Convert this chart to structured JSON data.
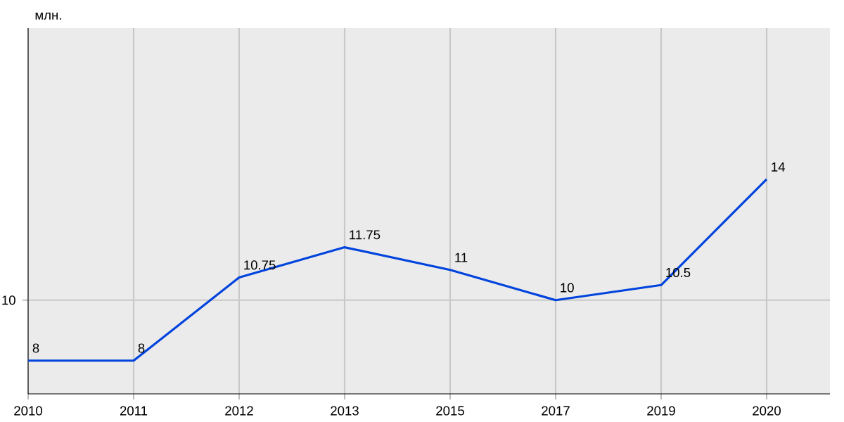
{
  "chart_data": {
    "type": "line",
    "ylabel": "млн.",
    "categories": [
      "2010",
      "2011",
      "2012",
      "2013",
      "2015",
      "2017",
      "2019",
      "2020"
    ],
    "series": [
      {
        "color": "#0044dd",
        "values": [
          8,
          8,
          10.75,
          11.75,
          11,
          10,
          10.5,
          14
        ]
      }
    ],
    "ylim": [
      6.9,
      19
    ],
    "ref_lines": [
      {
        "axis": "y",
        "value": 10,
        "label": "10"
      }
    ],
    "grid": true,
    "data_labels": true,
    "marker": "none",
    "line_style": "solid"
  }
}
